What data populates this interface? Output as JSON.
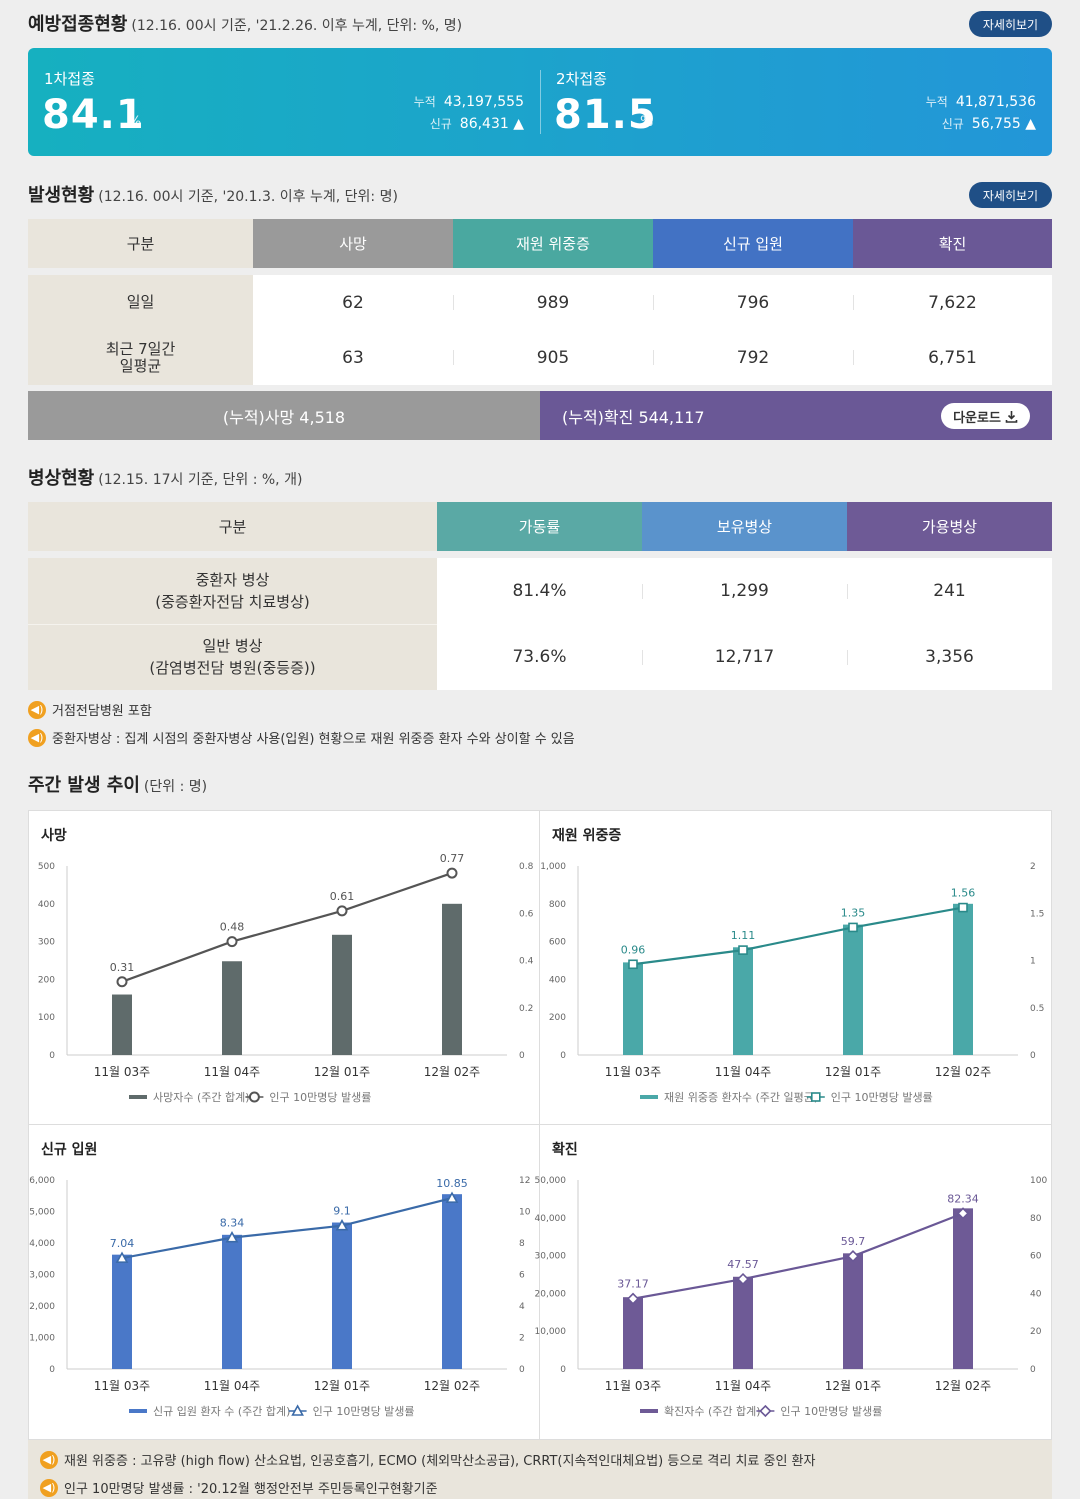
{
  "vaccination": {
    "title": "예방접종현황",
    "subtitle": "(12.16. 00시 기준, '21.2.26. 이후 누계, 단위: %, 명)",
    "detail_label": "자세히보기",
    "first": {
      "label": "1차접종",
      "percent": "84.1",
      "unit": "%",
      "cum_label": "누적",
      "cum_value": "43,197,555",
      "new_label": "신규",
      "new_value": "86,431 ▲"
    },
    "second": {
      "label": "2차접종",
      "percent": "81.5",
      "unit": "%",
      "cum_label": "누적",
      "cum_value": "41,871,536",
      "new_label": "신규",
      "new_value": "56,755 ▲"
    }
  },
  "occurrence": {
    "title": "발생현황",
    "subtitle": "(12.16. 00시 기준, '20.1.3. 이후 누계, 단위: 명)",
    "detail_label": "자세히보기",
    "headers": [
      "구분",
      "사망",
      "재원 위중증",
      "신규 입원",
      "확진"
    ],
    "header_colors": [
      "#e9e5dc",
      "#9a9a9a",
      "#4aa8a0",
      "#4272c4",
      "#6a5896"
    ],
    "rows": [
      {
        "label": "일일",
        "values": [
          "62",
          "989",
          "796",
          "7,622"
        ]
      },
      {
        "label": "최근 7일간\n일평균",
        "values": [
          "63",
          "905",
          "792",
          "6,751"
        ]
      }
    ],
    "cum_death": "(누적)사망  4,518",
    "cum_confirmed": "(누적)확진  544,117",
    "download_label": "다운로드"
  },
  "beds": {
    "title": "병상현황",
    "subtitle": "(12.15. 17시 기준, 단위 : %, 개)",
    "headers": [
      "구분",
      "가동률",
      "보유병상",
      "가용병상"
    ],
    "header_colors": [
      "#e9e5dc",
      "#5aa9a5",
      "#5a93cc",
      "#6e5a96"
    ],
    "rows": [
      {
        "label": "중환자 병상\n(중증환자전담 치료병상)",
        "values": [
          "81.4%",
          "1,299",
          "241"
        ]
      },
      {
        "label": "일반 병상\n(감염병전담 병원(중등증))",
        "values": [
          "73.6%",
          "12,717",
          "3,356"
        ]
      }
    ],
    "notes": [
      "거점전담병원 포함",
      "중환자병상 : 집계 시점의 중환자병상 사용(입원) 현황으로 재원 위중증 환자 수와 상이할 수 있음"
    ]
  },
  "weekly": {
    "title": "주간 발생 추이",
    "subtitle": "(단위 : 명)",
    "notes": [
      "재원 위중증 : 고유량 (high flow) 산소요법, 인공호흡기, ECMO (체외막산소공급), CRRT(지속적인대체요법) 등으로 격리 치료 중인 환자",
      "인구 10만명당 발생률 : '20.12월 행정안전부 주민등록인구현황기준"
    ]
  },
  "chart_data": [
    {
      "type": "bar",
      "title": "사망",
      "categories": [
        "11월 03주",
        "11월 04주",
        "12월 01주",
        "12월 02주"
      ],
      "series": [
        {
          "name": "사망자수 (주간 합계)",
          "type": "bar",
          "values": [
            160,
            248,
            318,
            400
          ],
          "color": "#5f6b6b"
        },
        {
          "name": "인구 10만명당 발생률",
          "type": "line",
          "values": [
            0.31,
            0.48,
            0.61,
            0.77
          ],
          "color": "#555555",
          "marker": "circle"
        }
      ],
      "y_left": {
        "min": 0,
        "max": 500,
        "ticks": [
          "0",
          "100",
          "200",
          "300",
          "400",
          "500"
        ]
      },
      "y_right": {
        "min": 0,
        "max": 0.8,
        "ticks": [
          "0",
          "0.2",
          "0.4",
          "0.6",
          "0.8"
        ]
      }
    },
    {
      "type": "bar",
      "title": "재원 위중증",
      "categories": [
        "11월 03주",
        "11월 04주",
        "12월 01주",
        "12월 02주"
      ],
      "series": [
        {
          "name": "재원 위중증 환자수 (주간 일평균)",
          "type": "bar",
          "values": [
            490,
            570,
            690,
            800
          ],
          "color": "#4aa8a8"
        },
        {
          "name": "인구 10만명당 발생률",
          "type": "line",
          "values": [
            0.96,
            1.11,
            1.35,
            1.56
          ],
          "color": "#2a8a8a",
          "marker": "square"
        }
      ],
      "y_left": {
        "min": 0,
        "max": 1000,
        "ticks": [
          "0",
          "200",
          "400",
          "600",
          "800",
          "1,000"
        ]
      },
      "y_right": {
        "min": 0,
        "max": 2,
        "ticks": [
          "0",
          "0.5",
          "1",
          "1.5",
          "2"
        ]
      }
    },
    {
      "type": "bar",
      "title": "신규 입원",
      "categories": [
        "11월 03주",
        "11월 04주",
        "12월 01주",
        "12월 02주"
      ],
      "series": [
        {
          "name": "신규 입원 환자 수 (주간 합계)",
          "type": "bar",
          "values": [
            3630,
            4260,
            4650,
            5550
          ],
          "color": "#4a78c8"
        },
        {
          "name": "인구 10만명당 발생률",
          "type": "line",
          "values": [
            7.04,
            8.34,
            9.1,
            10.85
          ],
          "color": "#3a6aa8",
          "marker": "triangle"
        }
      ],
      "y_left": {
        "min": 0,
        "max": 6000,
        "ticks": [
          "0",
          "1,000",
          "2,000",
          "3,000",
          "4,000",
          "5,000",
          "6,000"
        ]
      },
      "y_right": {
        "min": 0,
        "max": 12,
        "ticks": [
          "0",
          "2",
          "4",
          "6",
          "8",
          "10",
          "12"
        ]
      }
    },
    {
      "type": "bar",
      "title": "확진",
      "categories": [
        "11월 03주",
        "11월 04주",
        "12월 01주",
        "12월 02주"
      ],
      "series": [
        {
          "name": "확진자수 (주간 합계)",
          "type": "bar",
          "values": [
            19000,
            24400,
            30600,
            42500
          ],
          "color": "#6e5a96"
        },
        {
          "name": "인구 10만명당 발생률",
          "type": "line",
          "values": [
            37.17,
            47.57,
            59.7,
            82.34
          ],
          "color": "#6a5896",
          "marker": "diamond"
        }
      ],
      "y_left": {
        "min": 0,
        "max": 50000,
        "ticks": [
          "0",
          "10,000",
          "20,000",
          "30,000",
          "40,000",
          "50,000"
        ]
      },
      "y_right": {
        "min": 0,
        "max": 100,
        "ticks": [
          "0",
          "20",
          "40",
          "60",
          "80",
          "100"
        ]
      }
    }
  ]
}
